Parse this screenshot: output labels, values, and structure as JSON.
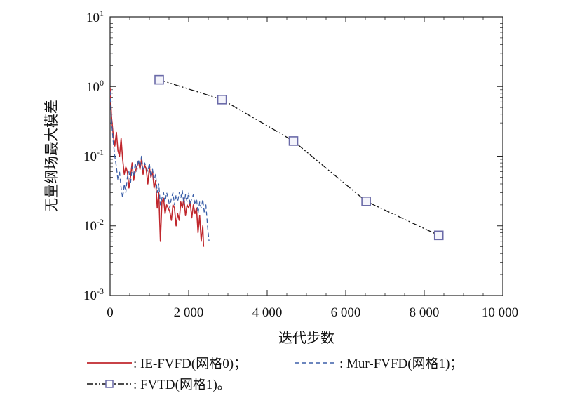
{
  "chart_data": {
    "type": "line",
    "title": "",
    "xlabel": "迭代步数",
    "ylabel": "无量纲场最大模差",
    "xscale": "linear",
    "yscale": "log",
    "xlim": [
      0,
      10000
    ],
    "ylim": [
      0.001,
      10
    ],
    "x_ticks": [
      0,
      2000,
      4000,
      6000,
      8000,
      10000
    ],
    "x_tick_labels": [
      "0",
      "2 000",
      "4 000",
      "6 000",
      "8 000",
      "10 000"
    ],
    "y_ticks": [
      0.001,
      0.01,
      0.1,
      1,
      10
    ],
    "y_tick_labels": [
      {
        "base": "10",
        "exp": "-3"
      },
      {
        "base": "10",
        "exp": "-2"
      },
      {
        "base": "10",
        "exp": "-1"
      },
      {
        "base": "10",
        "exp": "0"
      },
      {
        "base": "10",
        "exp": "1"
      }
    ],
    "series": [
      {
        "name": "IE-FVFD(网格0)",
        "color": "#c0272d",
        "style": "solid",
        "marker": "none",
        "x": [
          0,
          40,
          80,
          120,
          160,
          200,
          240,
          280,
          320,
          360,
          400,
          440,
          480,
          520,
          560,
          600,
          640,
          680,
          720,
          760,
          800,
          840,
          880,
          920,
          960,
          1000,
          1040,
          1080,
          1120,
          1160,
          1200,
          1240,
          1280,
          1320,
          1360,
          1400,
          1440,
          1480,
          1520,
          1560,
          1600,
          1640,
          1680,
          1720,
          1760,
          1800,
          1840,
          1880,
          1920,
          1960,
          2000,
          2040,
          2080,
          2120,
          2160,
          2200,
          2240,
          2280,
          2320,
          2360,
          2380
        ],
        "y": [
          0.95,
          0.35,
          0.2,
          0.14,
          0.22,
          0.12,
          0.1,
          0.18,
          0.09,
          0.055,
          0.07,
          0.06,
          0.035,
          0.05,
          0.08,
          0.045,
          0.06,
          0.07,
          0.085,
          0.065,
          0.09,
          0.055,
          0.075,
          0.065,
          0.04,
          0.07,
          0.05,
          0.06,
          0.035,
          0.045,
          0.018,
          0.03,
          0.006,
          0.022,
          0.025,
          0.015,
          0.02,
          0.018,
          0.016,
          0.012,
          0.02,
          0.018,
          0.01,
          0.015,
          0.012,
          0.022,
          0.018,
          0.025,
          0.014,
          0.02,
          0.018,
          0.022,
          0.013,
          0.02,
          0.015,
          0.018,
          0.008,
          0.014,
          0.006,
          0.01,
          0.005
        ]
      },
      {
        "name": "Mur-FVFD(网格1)",
        "color": "#3b5fa8",
        "style": "dashed",
        "marker": "none",
        "x": [
          0,
          40,
          80,
          120,
          160,
          200,
          240,
          280,
          320,
          360,
          400,
          440,
          480,
          520,
          560,
          600,
          640,
          680,
          720,
          760,
          800,
          840,
          880,
          920,
          960,
          1000,
          1040,
          1080,
          1120,
          1160,
          1200,
          1240,
          1280,
          1320,
          1360,
          1400,
          1440,
          1480,
          1520,
          1560,
          1600,
          1640,
          1680,
          1720,
          1760,
          1800,
          1840,
          1880,
          1920,
          1960,
          2000,
          2040,
          2080,
          2120,
          2160,
          2200,
          2240,
          2280,
          2320,
          2360,
          2400,
          2440,
          2480,
          2520
        ],
        "y": [
          0.85,
          0.3,
          0.16,
          0.1,
          0.07,
          0.045,
          0.06,
          0.035,
          0.025,
          0.04,
          0.03,
          0.05,
          0.06,
          0.04,
          0.07,
          0.05,
          0.08,
          0.06,
          0.09,
          0.07,
          0.1,
          0.065,
          0.08,
          0.07,
          0.06,
          0.08,
          0.05,
          0.065,
          0.045,
          0.055,
          0.03,
          0.04,
          0.02,
          0.025,
          0.03,
          0.022,
          0.03,
          0.025,
          0.018,
          0.025,
          0.03,
          0.02,
          0.028,
          0.022,
          0.03,
          0.025,
          0.032,
          0.02,
          0.028,
          0.022,
          0.03,
          0.02,
          0.025,
          0.028,
          0.02,
          0.025,
          0.015,
          0.022,
          0.018,
          0.024,
          0.015,
          0.02,
          0.01,
          0.006
        ]
      },
      {
        "name": "FVTD(网格1)",
        "color": "#111111",
        "style": "dash-dot-dot",
        "marker": "square",
        "marker_color": "#6a6aa8",
        "x": [
          1250,
          2850,
          4670,
          6520,
          8370
        ],
        "y": [
          1.25,
          0.65,
          0.165,
          0.0225,
          0.0073
        ]
      }
    ],
    "legend": {
      "placement": "bottom",
      "entries": [
        {
          "label": ": IE-FVFD(网格0)；"
        },
        {
          "label": ": Mur-FVFD(网格1)；"
        },
        {
          "label": ": FVTD(网格1)。"
        }
      ]
    }
  }
}
